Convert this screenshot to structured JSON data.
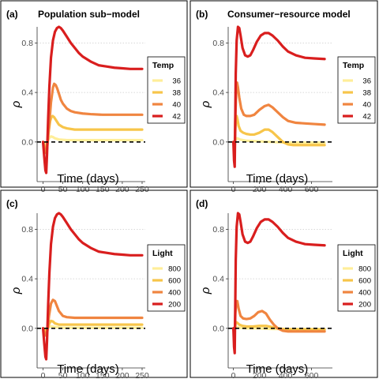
{
  "figure": {
    "y_axis_label": "ρ",
    "x_axis_label": "Time (days)"
  },
  "colors": {
    "36": "#ffee99",
    "38": "#f7c54a",
    "40": "#f08540",
    "42": "#d91e1e",
    "800": "#ffee99",
    "600": "#f7c54a",
    "400": "#f08540",
    "200": "#d91e1e",
    "zero_line": "#000000",
    "grid": "#cccccc"
  },
  "chart_data": [
    {
      "letter": "(a)",
      "title": "Population sub−model",
      "type": "line",
      "xlabel": "Time (days)",
      "ylabel": "ρ",
      "xlim": [
        -15,
        258
      ],
      "ylim": [
        -0.32,
        0.93
      ],
      "xticks": [
        0,
        50,
        100,
        150,
        200,
        250
      ],
      "yticks": [
        0.0,
        0.4,
        0.8
      ],
      "ytick_labels": [
        "0.0",
        "0.4",
        "0.8"
      ],
      "grid": "horizontal dotted at 0.4 and 0.8",
      "hline": 0,
      "legend": {
        "title": "Temp",
        "position": "right",
        "entries": [
          "36",
          "38",
          "40",
          "42"
        ]
      },
      "series": [
        {
          "name": "42",
          "x": [
            0,
            3,
            6,
            8,
            10,
            13,
            16,
            20,
            25,
            30,
            35,
            40,
            45,
            50,
            60,
            70,
            80,
            90,
            100,
            120,
            140,
            160,
            180,
            200,
            220,
            240,
            250
          ],
          "y": [
            0,
            -0.12,
            -0.23,
            -0.25,
            -0.1,
            0.2,
            0.45,
            0.68,
            0.82,
            0.89,
            0.92,
            0.93,
            0.92,
            0.9,
            0.85,
            0.8,
            0.76,
            0.72,
            0.69,
            0.65,
            0.62,
            0.61,
            0.6,
            0.595,
            0.59,
            0.59,
            0.59
          ]
        },
        {
          "name": "40",
          "x": [
            0,
            5,
            8,
            10,
            15,
            20,
            25,
            28,
            32,
            36,
            40,
            45,
            50,
            60,
            70,
            80,
            100,
            120,
            150,
            200,
            250
          ],
          "y": [
            0,
            -0.07,
            -0.09,
            -0.06,
            0.12,
            0.32,
            0.44,
            0.47,
            0.46,
            0.43,
            0.39,
            0.34,
            0.31,
            0.27,
            0.25,
            0.24,
            0.23,
            0.225,
            0.22,
            0.22,
            0.22
          ]
        },
        {
          "name": "38",
          "x": [
            0,
            5,
            8,
            10,
            14,
            18,
            21,
            24,
            28,
            32,
            36,
            40,
            50,
            60,
            80,
            100,
            150,
            200,
            250
          ],
          "y": [
            0,
            -0.04,
            -0.05,
            -0.03,
            0.08,
            0.17,
            0.2,
            0.21,
            0.2,
            0.18,
            0.16,
            0.14,
            0.12,
            0.11,
            0.1,
            0.1,
            0.1,
            0.1,
            0.1
          ]
        },
        {
          "name": "36",
          "x": [
            0,
            5,
            8,
            12,
            16,
            20,
            25,
            30,
            40,
            60,
            100,
            150,
            200,
            250
          ],
          "y": [
            0,
            -0.01,
            -0.015,
            0.01,
            0.035,
            0.045,
            0.04,
            0.03,
            0.02,
            0.015,
            0.015,
            0.015,
            0.015,
            0.015
          ]
        }
      ]
    },
    {
      "letter": "(b)",
      "title": "Consumer−resource model",
      "type": "line",
      "xlabel": "Time (days)",
      "ylabel": "ρ",
      "xlim": [
        -40,
        760
      ],
      "ylim": [
        -0.32,
        0.93
      ],
      "xticks": [
        0,
        200,
        400,
        600
      ],
      "yticks": [
        0.0,
        0.4,
        0.8
      ],
      "ytick_labels": [
        "0.0",
        "0.4",
        "0.8"
      ],
      "grid": "horizontal dotted at 0.4 and 0.8",
      "hline": 0,
      "legend": {
        "title": "Temp",
        "position": "right",
        "entries": [
          "36",
          "38",
          "40",
          "42"
        ]
      },
      "series": [
        {
          "name": "42",
          "x": [
            0,
            5,
            10,
            14,
            18,
            25,
            35,
            45,
            55,
            70,
            90,
            110,
            130,
            150,
            180,
            210,
            240,
            270,
            300,
            340,
            380,
            420,
            480,
            550,
            620,
            700
          ],
          "y": [
            0,
            -0.15,
            -0.2,
            0.15,
            0.55,
            0.82,
            0.93,
            0.92,
            0.86,
            0.76,
            0.7,
            0.69,
            0.7,
            0.74,
            0.81,
            0.86,
            0.88,
            0.88,
            0.86,
            0.82,
            0.77,
            0.73,
            0.7,
            0.68,
            0.675,
            0.67
          ]
        },
        {
          "name": "40",
          "x": [
            0,
            5,
            10,
            15,
            22,
            28,
            35,
            45,
            60,
            80,
            100,
            130,
            160,
            200,
            240,
            270,
            300,
            340,
            380,
            420,
            480,
            550,
            620,
            700
          ],
          "y": [
            0,
            -0.05,
            -0.05,
            0.2,
            0.43,
            0.48,
            0.44,
            0.36,
            0.27,
            0.22,
            0.21,
            0.21,
            0.22,
            0.26,
            0.29,
            0.3,
            0.28,
            0.24,
            0.2,
            0.17,
            0.155,
            0.15,
            0.145,
            0.14
          ]
        },
        {
          "name": "38",
          "x": [
            0,
            5,
            10,
            15,
            20,
            25,
            32,
            40,
            55,
            75,
            100,
            130,
            160,
            200,
            240,
            270,
            300,
            340,
            380,
            420,
            460,
            500,
            550,
            620,
            700
          ],
          "y": [
            0,
            -0.03,
            -0.03,
            0.1,
            0.2,
            0.21,
            0.18,
            0.13,
            0.09,
            0.075,
            0.065,
            0.06,
            0.06,
            0.075,
            0.1,
            0.1,
            0.08,
            0.04,
            0.0,
            -0.02,
            -0.025,
            -0.025,
            -0.025,
            -0.025,
            -0.025
          ]
        },
        {
          "name": "36",
          "x": [
            0,
            5,
            10,
            20,
            30,
            50,
            100,
            200,
            300,
            400,
            500,
            600,
            700
          ],
          "y": [
            0,
            -0.01,
            0.0,
            0.02,
            0.03,
            0.02,
            0.01,
            0.005,
            0.0,
            -0.005,
            -0.005,
            -0.005,
            -0.005
          ]
        }
      ]
    },
    {
      "letter": "(c)",
      "title": "",
      "type": "line",
      "xlabel": "Time (days)",
      "ylabel": "ρ",
      "xlim": [
        -15,
        258
      ],
      "ylim": [
        -0.32,
        0.93
      ],
      "xticks": [
        0,
        50,
        100,
        150,
        200,
        250
      ],
      "yticks": [
        0.0,
        0.4,
        0.8
      ],
      "ytick_labels": [
        "0.0",
        "0.4",
        "0.8"
      ],
      "grid": "horizontal dotted at 0.4 and 0.8",
      "hline": 0,
      "legend": {
        "title": "Light",
        "position": "right",
        "entries": [
          "800",
          "600",
          "400",
          "200"
        ]
      },
      "series": [
        {
          "name": "200",
          "x": [
            0,
            3,
            6,
            8,
            10,
            13,
            16,
            20,
            25,
            30,
            35,
            40,
            45,
            50,
            60,
            70,
            80,
            90,
            100,
            120,
            140,
            160,
            180,
            200,
            220,
            240,
            250
          ],
          "y": [
            0,
            -0.12,
            -0.23,
            -0.25,
            -0.1,
            0.2,
            0.45,
            0.68,
            0.82,
            0.89,
            0.92,
            0.93,
            0.92,
            0.9,
            0.85,
            0.8,
            0.76,
            0.72,
            0.69,
            0.65,
            0.62,
            0.61,
            0.6,
            0.595,
            0.59,
            0.59,
            0.59
          ]
        },
        {
          "name": "400",
          "x": [
            0,
            5,
            8,
            11,
            15,
            20,
            25,
            30,
            35,
            40,
            50,
            60,
            80,
            100,
            150,
            200,
            250
          ],
          "y": [
            0,
            -0.05,
            -0.06,
            -0.02,
            0.1,
            0.2,
            0.23,
            0.22,
            0.18,
            0.14,
            0.1,
            0.09,
            0.085,
            0.085,
            0.085,
            0.085,
            0.085
          ]
        },
        {
          "name": "600",
          "x": [
            0,
            5,
            8,
            12,
            16,
            20,
            25,
            30,
            40,
            50,
            60,
            80,
            100,
            150,
            200,
            250
          ],
          "y": [
            0,
            -0.02,
            -0.03,
            0.0,
            0.04,
            0.06,
            0.055,
            0.04,
            0.03,
            0.03,
            0.03,
            0.03,
            0.03,
            0.03,
            0.03,
            0.03
          ]
        },
        {
          "name": "800",
          "x": [
            0,
            5,
            10,
            15,
            20,
            30,
            50,
            100,
            150,
            200,
            250
          ],
          "y": [
            0,
            -0.005,
            0.0,
            0.01,
            0.015,
            0.01,
            0.005,
            0.005,
            0.005,
            0.005,
            0.005
          ]
        }
      ]
    },
    {
      "letter": "(d)",
      "title": "",
      "type": "line",
      "xlabel": "Time (days)",
      "ylabel": "ρ",
      "xlim": [
        -40,
        760
      ],
      "ylim": [
        -0.32,
        0.93
      ],
      "xticks": [
        0,
        200,
        400,
        600
      ],
      "yticks": [
        0.0,
        0.4,
        0.8
      ],
      "ytick_labels": [
        "0.0",
        "0.4",
        "0.8"
      ],
      "grid": "horizontal dotted at 0.4 and 0.8",
      "hline": 0,
      "legend": {
        "title": "Light",
        "position": "right",
        "entries": [
          "800",
          "600",
          "400",
          "200"
        ]
      },
      "series": [
        {
          "name": "200",
          "x": [
            0,
            5,
            10,
            14,
            18,
            25,
            35,
            45,
            55,
            70,
            90,
            110,
            130,
            150,
            180,
            210,
            240,
            270,
            300,
            340,
            380,
            420,
            480,
            550,
            620,
            700
          ],
          "y": [
            0,
            -0.15,
            -0.2,
            0.15,
            0.55,
            0.82,
            0.93,
            0.92,
            0.86,
            0.76,
            0.7,
            0.69,
            0.7,
            0.74,
            0.81,
            0.86,
            0.88,
            0.88,
            0.86,
            0.82,
            0.77,
            0.73,
            0.7,
            0.68,
            0.675,
            0.67
          ]
        },
        {
          "name": "400",
          "x": [
            0,
            5,
            10,
            15,
            22,
            30,
            40,
            55,
            75,
            100,
            130,
            160,
            190,
            220,
            250,
            280,
            310,
            340,
            380,
            420,
            480,
            550,
            620,
            700
          ],
          "y": [
            0,
            -0.04,
            -0.04,
            0.12,
            0.22,
            0.22,
            0.16,
            0.1,
            0.08,
            0.075,
            0.08,
            0.1,
            0.13,
            0.14,
            0.12,
            0.07,
            0.03,
            0.0,
            -0.02,
            -0.025,
            -0.025,
            -0.025,
            -0.025,
            -0.025
          ]
        },
        {
          "name": "600",
          "x": [
            0,
            5,
            10,
            15,
            20,
            30,
            45,
            70,
            100,
            150,
            200,
            250,
            300,
            350,
            400,
            500,
            600,
            700
          ],
          "y": [
            0,
            -0.02,
            -0.02,
            0.03,
            0.05,
            0.045,
            0.03,
            0.02,
            0.015,
            0.015,
            0.02,
            0.02,
            0.01,
            0.0,
            -0.01,
            -0.01,
            -0.01,
            -0.01
          ]
        },
        {
          "name": "800",
          "x": [
            0,
            5,
            10,
            20,
            30,
            50,
            100,
            200,
            300,
            400,
            500,
            600,
            700
          ],
          "y": [
            0,
            -0.005,
            0.0,
            0.01,
            0.01,
            0.005,
            0.0,
            0.0,
            -0.005,
            -0.005,
            -0.005,
            -0.005,
            -0.005
          ]
        }
      ]
    }
  ]
}
